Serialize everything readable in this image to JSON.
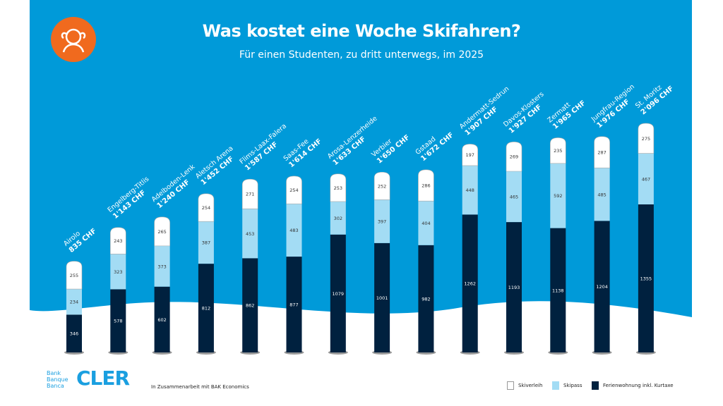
{
  "header": {
    "title": "Was kostet eine Woche Skifahren?",
    "subtitle": "Für einen Studenten, zu dritt unterwegs, im 2025"
  },
  "footer": {
    "bank_lines": [
      "Bank",
      "Banque",
      "Banca"
    ],
    "brand": "CLER",
    "collaboration": "In Zusammenarbeit mit BAK Economics"
  },
  "colors": {
    "background": "#009ad9",
    "skiverleih": "#ffffff",
    "skipass": "#a3dcf4",
    "ferienwohnung": "#00213f",
    "avatar": "#f06a1e"
  },
  "chart_data": {
    "type": "bar",
    "stacked": true,
    "title": "Was kostet eine Woche Skifahren?",
    "categories": [
      "Airolo",
      "Engelberg-Titlis",
      "Adelboden-Lenk",
      "Aletsch Arena",
      "Flims-Laax-Falera",
      "Saas-Fee",
      "Arosa-Lenzerheide",
      "Verbier",
      "Gstaad",
      "Andermatt-Sedrun",
      "Davos-Klosters",
      "Zermatt",
      "Jungfrau-Region",
      "St. Moritz"
    ],
    "totals": [
      "835 CHF",
      "1'143 CHF",
      "1'240 CHF",
      "1'452 CHF",
      "1'587 CHF",
      "1'614 CHF",
      "1'633 CHF",
      "1'650 CHF",
      "1'672 CHF",
      "1'907 CHF",
      "1'927 CHF",
      "1'965 CHF",
      "1'976 CHF",
      "2'096 CHF"
    ],
    "series": [
      {
        "name": "Ferienwohnung inkl. Kurtaxe",
        "values": [
          346,
          578,
          602,
          812,
          862,
          877,
          1079,
          1001,
          982,
          1262,
          1193,
          1138,
          1204,
          1355
        ]
      },
      {
        "name": "Skipass",
        "values": [
          234,
          323,
          373,
          387,
          453,
          483,
          302,
          397,
          404,
          448,
          465,
          592,
          485,
          467
        ]
      },
      {
        "name": "Skiverleih",
        "values": [
          255,
          243,
          265,
          254,
          271,
          254,
          253,
          252,
          286,
          197,
          269,
          235,
          287,
          275
        ]
      }
    ],
    "legend": [
      "Skiverleih",
      "Skipass",
      "Ferienwohnung inkl. Kurtaxe"
    ],
    "legend_position": "bottom-right",
    "ylim": [
      0,
      2100
    ]
  }
}
